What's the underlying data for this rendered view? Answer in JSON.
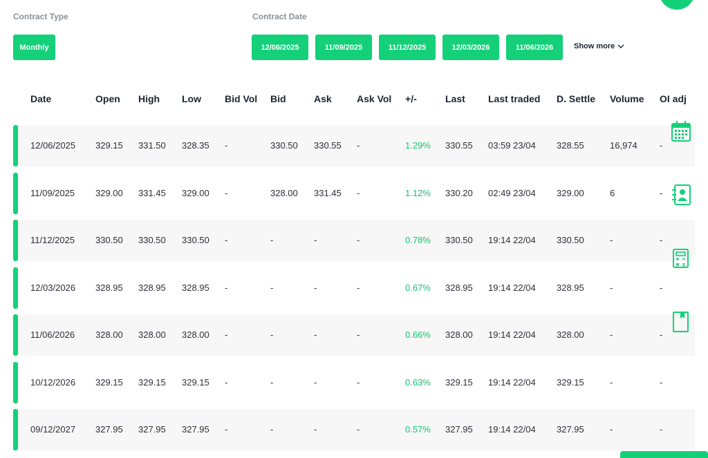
{
  "filters": {
    "contract_type_label": "Contract Type",
    "contract_type_selected": "Monthly",
    "contract_date_label": "Contract Date",
    "dates": [
      "12/06/2025",
      "11/09/2025",
      "11/12/2025",
      "12/03/2026",
      "11/06/2026"
    ],
    "show_more": "Show more"
  },
  "table": {
    "headers": [
      "Date",
      "Open",
      "High",
      "Low",
      "Bid Vol",
      "Bid",
      "Ask",
      "Ask Vol",
      "+/-",
      "Last",
      "Last traded",
      "D. Settle",
      "Volume",
      "OI adj"
    ],
    "rows": [
      [
        "12/06/2025",
        "329.15",
        "331.50",
        "328.35",
        "-",
        "330.50",
        "330.55",
        "-",
        "1.29%",
        "330.55",
        "03:59 23/04",
        "328.55",
        "16,974",
        "-"
      ],
      [
        "11/09/2025",
        "329.00",
        "331.45",
        "329.00",
        "-",
        "328.00",
        "331.45",
        "-",
        "1.12%",
        "330.20",
        "02:49 23/04",
        "329.00",
        "6",
        "-"
      ],
      [
        "11/12/2025",
        "330.50",
        "330.50",
        "330.50",
        "-",
        "-",
        "-",
        "-",
        "0.78%",
        "330.50",
        "19:14 22/04",
        "330.50",
        "-",
        "-"
      ],
      [
        "12/03/2026",
        "328.95",
        "328.95",
        "328.95",
        "-",
        "-",
        "-",
        "-",
        "0.67%",
        "328.95",
        "19:14 22/04",
        "328.95",
        "-",
        "-"
      ],
      [
        "11/06/2026",
        "328.00",
        "328.00",
        "328.00",
        "-",
        "-",
        "-",
        "-",
        "0.66%",
        "328.00",
        "19:14 22/04",
        "328.00",
        "-",
        "-"
      ],
      [
        "10/12/2026",
        "329.15",
        "329.15",
        "329.15",
        "-",
        "-",
        "-",
        "-",
        "0.63%",
        "329.15",
        "19:14 22/04",
        "329.15",
        "-",
        "-"
      ],
      [
        "09/12/2027",
        "327.95",
        "327.95",
        "327.95",
        "-",
        "-",
        "-",
        "-",
        "0.57%",
        "327.95",
        "19:14 22/04",
        "327.95",
        "-",
        "-"
      ]
    ]
  },
  "side_icons": [
    "calendar-icon",
    "contact-card-icon",
    "calculator-icon",
    "bookmark-icon"
  ],
  "colors": {
    "accent": "#14d079",
    "positive_change": "#14c46f",
    "row_shade": "#f7f7f7"
  }
}
